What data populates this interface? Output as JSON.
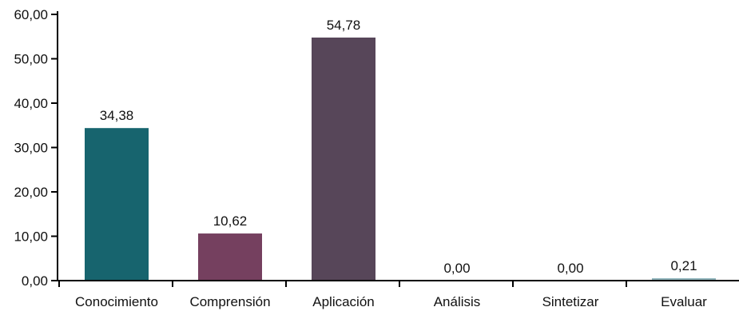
{
  "chart_data": {
    "type": "bar",
    "categories": [
      "Conocimiento",
      "Comprensión",
      "Aplicación",
      "Análisis",
      "Sintetizar",
      "Evaluar"
    ],
    "values": [
      34.38,
      10.62,
      54.78,
      0.0,
      0.0,
      0.21
    ],
    "value_labels": [
      "34,38",
      "10,62",
      "54,78",
      "0,00",
      "0,00",
      "0,21"
    ],
    "bar_colors": [
      "#17646e",
      "#75405f",
      "#574659",
      "#8fb4bb",
      "#8fb4bb",
      "#8fb4bb"
    ],
    "ylim": [
      0,
      60
    ],
    "yticks": [
      0,
      10,
      20,
      30,
      40,
      50,
      60
    ],
    "ytick_labels": [
      "0,00",
      "10,00",
      "20,00",
      "30,00",
      "40,00",
      "50,00",
      "60,00"
    ],
    "grid": false,
    "title": "",
    "xlabel": "",
    "ylabel": ""
  }
}
